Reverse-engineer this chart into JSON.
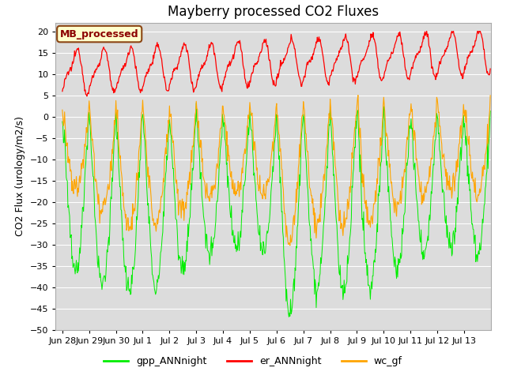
{
  "title": "Mayberry processed CO2 Fluxes",
  "ylabel": "CO2 Flux (urology/m2/s)",
  "ylim": [
    -50,
    22
  ],
  "yticks": [
    -50,
    -45,
    -40,
    -35,
    -30,
    -25,
    -20,
    -15,
    -10,
    -5,
    0,
    5,
    10,
    15,
    20
  ],
  "bg_color": "#dcdcdc",
  "fig_color": "#ffffff",
  "title_fontsize": 12,
  "label_fontsize": 9,
  "tick_fontsize": 8,
  "legend_label": "MB_processed",
  "legend_box_color": "#ffffcc",
  "legend_box_edge": "#8b4513",
  "series_colors": {
    "gpp_ANNnight": "#00ee00",
    "er_ANNnight": "#ff0000",
    "wc_gf": "#ffa500"
  },
  "bottom_legend": [
    "gpp_ANNnight",
    "er_ANNnight",
    "wc_gf"
  ]
}
